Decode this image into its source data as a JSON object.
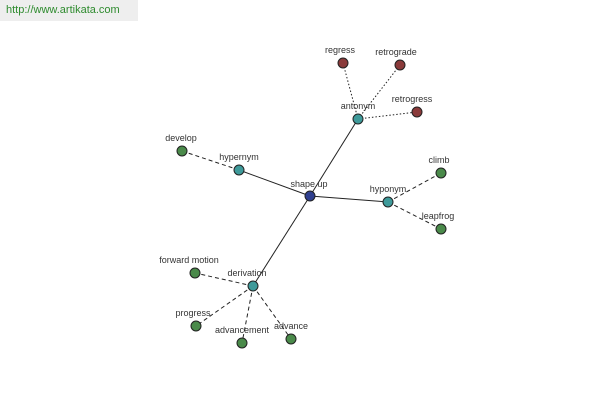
{
  "watermark": "http://www.artikata.com",
  "nodes": [
    {
      "label": "shape up"
    },
    {
      "label": "antonym"
    },
    {
      "label": "hypernym"
    },
    {
      "label": "hyponym"
    },
    {
      "label": "derivation"
    },
    {
      "label": "regress"
    },
    {
      "label": "retrograde"
    },
    {
      "label": "retrogress"
    },
    {
      "label": "develop"
    },
    {
      "label": "climb"
    },
    {
      "label": "leapfrog"
    },
    {
      "label": "forward motion"
    },
    {
      "label": "progress"
    },
    {
      "label": "advancement"
    },
    {
      "label": "advance"
    }
  ]
}
